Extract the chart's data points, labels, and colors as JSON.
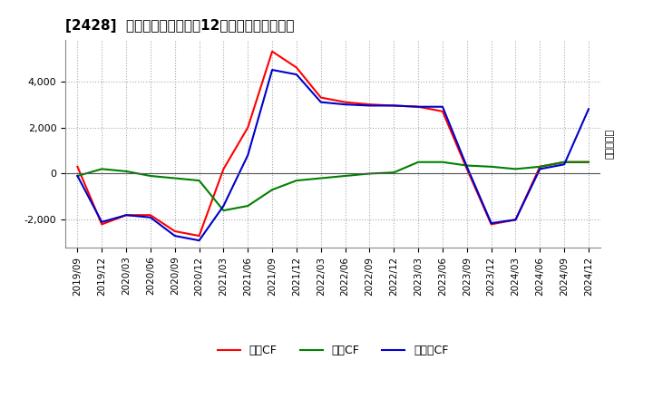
{
  "title": "[2428]  キャッシュフローの12か月移動合計の推移",
  "ylabel": "（百万円）",
  "legend": [
    "営業CF",
    "投資CF",
    "フリーCF"
  ],
  "colors": [
    "#ff0000",
    "#008000",
    "#0000cc"
  ],
  "x_labels": [
    "2019/09",
    "2019/12",
    "2020/03",
    "2020/06",
    "2020/09",
    "2020/12",
    "2021/03",
    "2021/06",
    "2021/09",
    "2021/12",
    "2022/03",
    "2022/06",
    "2022/09",
    "2022/12",
    "2023/03",
    "2023/06",
    "2023/09",
    "2023/12",
    "2024/03",
    "2024/06",
    "2024/09",
    "2024/12"
  ],
  "operating_cf": [
    300,
    -2200,
    -1800,
    -1800,
    -2500,
    -2700,
    200,
    2000,
    5300,
    4600,
    3300,
    3100,
    3000,
    2950,
    2900,
    2700,
    200,
    -2200,
    -2000,
    300,
    500,
    500
  ],
  "investing_cf": [
    -100,
    200,
    100,
    -100,
    -200,
    -300,
    -1600,
    -1400,
    -700,
    -300,
    -200,
    -100,
    0,
    50,
    500,
    500,
    350,
    300,
    200,
    300,
    500,
    500
  ],
  "free_cf": [
    -100,
    -2100,
    -1800,
    -1900,
    -2700,
    -2900,
    -1400,
    800,
    4500,
    4300,
    3100,
    3000,
    2950,
    2950,
    2900,
    2900,
    300,
    -2150,
    -2000,
    200,
    400,
    2800
  ],
  "ylim": [
    -3200,
    5800
  ],
  "yticks": [
    -2000,
    0,
    2000,
    4000
  ],
  "background_color": "#ffffff"
}
